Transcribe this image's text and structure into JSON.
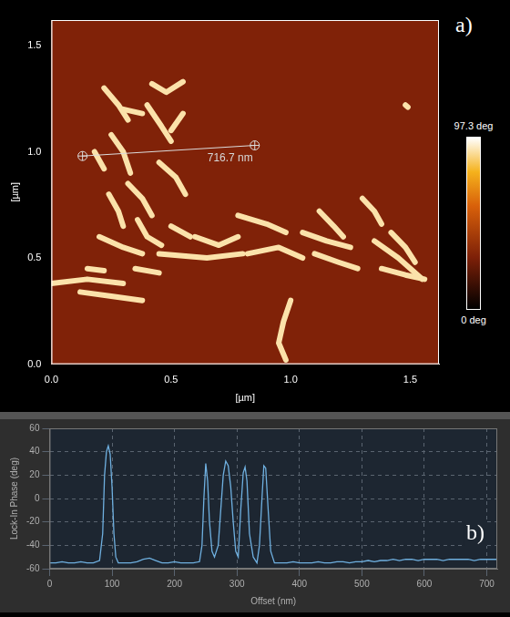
{
  "chart_data": [
    {
      "type": "phase_map",
      "panel": "a)",
      "xlabel": "[µm]",
      "ylabel": "[µm]",
      "xlim": [
        0,
        1.62
      ],
      "ylim": [
        0,
        1.62
      ],
      "xticks": [
        {
          "value": 0,
          "label": "0.0"
        },
        {
          "value": 0.5,
          "label": "0.5"
        },
        {
          "value": 1,
          "label": "1.0"
        },
        {
          "value": 1.5,
          "label": "1.5"
        }
      ],
      "yticks": [
        {
          "value": 0,
          "label": "0.0"
        },
        {
          "value": 0.5,
          "label": "0.5"
        },
        {
          "value": 1,
          "label": "1.0"
        },
        {
          "value": 1.5,
          "label": "1.5"
        }
      ],
      "colorbar": {
        "range": [
          0,
          97.3
        ],
        "ticks": [
          {
            "value": 0,
            "label": "0 deg"
          },
          {
            "value": 97.3,
            "label": "97.3 deg"
          }
        ]
      },
      "background_phase": 30,
      "fibril_phase": 90,
      "fibrils": [
        [
          [
            0.22,
            1.3
          ],
          [
            0.28,
            1.22
          ],
          [
            0.32,
            1.15
          ]
        ],
        [
          [
            0.42,
            1.32
          ],
          [
            0.48,
            1.28
          ],
          [
            0.55,
            1.33
          ]
        ],
        [
          [
            0.4,
            1.22
          ],
          [
            0.46,
            1.12
          ],
          [
            0.5,
            1.05
          ]
        ],
        [
          [
            0.25,
            1.08
          ],
          [
            0.3,
            1.0
          ],
          [
            0.33,
            0.9
          ]
        ],
        [
          [
            0.18,
            1.0
          ],
          [
            0.22,
            0.92
          ]
        ],
        [
          [
            0.32,
            0.85
          ],
          [
            0.38,
            0.78
          ],
          [
            0.42,
            0.7
          ]
        ],
        [
          [
            0.45,
            0.95
          ],
          [
            0.52,
            0.88
          ],
          [
            0.56,
            0.8
          ]
        ],
        [
          [
            0.24,
            0.8
          ],
          [
            0.28,
            0.72
          ],
          [
            0.3,
            0.65
          ]
        ],
        [
          [
            0.36,
            0.68
          ],
          [
            0.4,
            0.6
          ],
          [
            0.46,
            0.56
          ]
        ],
        [
          [
            0.2,
            0.6
          ],
          [
            0.3,
            0.55
          ],
          [
            0.38,
            0.52
          ]
        ],
        [
          [
            0.5,
            0.65
          ],
          [
            0.58,
            0.6
          ]
        ],
        [
          [
            0.0,
            0.38
          ],
          [
            0.15,
            0.4
          ],
          [
            0.3,
            0.38
          ]
        ],
        [
          [
            0.12,
            0.34
          ],
          [
            0.25,
            0.32
          ],
          [
            0.38,
            0.3
          ]
        ],
        [
          [
            0.35,
            0.45
          ],
          [
            0.45,
            0.43
          ]
        ],
        [
          [
            0.45,
            0.52
          ],
          [
            0.65,
            0.5
          ],
          [
            0.8,
            0.52
          ]
        ],
        [
          [
            0.6,
            0.6
          ],
          [
            0.7,
            0.56
          ],
          [
            0.78,
            0.6
          ]
        ],
        [
          [
            0.78,
            0.7
          ],
          [
            0.9,
            0.66
          ],
          [
            0.98,
            0.62
          ]
        ],
        [
          [
            0.82,
            0.52
          ],
          [
            0.95,
            0.55
          ],
          [
            1.05,
            0.5
          ]
        ],
        [
          [
            1.05,
            0.62
          ],
          [
            1.15,
            0.58
          ],
          [
            1.25,
            0.55
          ]
        ],
        [
          [
            1.1,
            0.52
          ],
          [
            1.2,
            0.48
          ],
          [
            1.28,
            0.45
          ]
        ],
        [
          [
            1.12,
            0.72
          ],
          [
            1.18,
            0.65
          ],
          [
            1.22,
            0.6
          ]
        ],
        [
          [
            1.3,
            0.78
          ],
          [
            1.35,
            0.72
          ],
          [
            1.38,
            0.66
          ]
        ],
        [
          [
            1.35,
            0.58
          ],
          [
            1.45,
            0.5
          ],
          [
            1.55,
            0.4
          ]
        ],
        [
          [
            1.38,
            0.45
          ],
          [
            1.48,
            0.42
          ],
          [
            1.56,
            0.4
          ]
        ],
        [
          [
            1.42,
            0.62
          ],
          [
            1.48,
            0.55
          ],
          [
            1.52,
            0.48
          ]
        ],
        [
          [
            1.0,
            0.3
          ],
          [
            0.97,
            0.2
          ],
          [
            0.95,
            0.1
          ],
          [
            0.98,
            0.02
          ]
        ],
        [
          [
            1.48,
            1.22
          ],
          [
            1.49,
            1.21
          ]
        ],
        [
          [
            0.3,
            1.2
          ],
          [
            0.38,
            1.18
          ]
        ],
        [
          [
            0.55,
            1.18
          ],
          [
            0.5,
            1.1
          ]
        ],
        [
          [
            0.15,
            0.45
          ],
          [
            0.22,
            0.44
          ]
        ]
      ],
      "profile_line": {
        "start": [
          0.13,
          0.98
        ],
        "end": [
          0.85,
          1.03
        ],
        "label": "716.7 nm"
      }
    },
    {
      "type": "line",
      "panel": "b)",
      "xlabel": "Offset (nm)",
      "ylabel": "Lock-In Phase (deg)",
      "color": "#6fb0e0",
      "grid": true,
      "xlim": [
        0,
        716.7
      ],
      "ylim": [
        -60,
        60
      ],
      "xticks": [
        0,
        100,
        200,
        300,
        400,
        500,
        600,
        700
      ],
      "yticks": [
        -60,
        -40,
        -20,
        0,
        20,
        40,
        60
      ],
      "x": [
        0,
        10,
        20,
        30,
        40,
        50,
        60,
        70,
        80,
        85,
        88,
        91,
        94,
        97,
        100,
        103,
        106,
        110,
        120,
        130,
        140,
        150,
        160,
        170,
        180,
        190,
        200,
        210,
        220,
        230,
        240,
        244,
        247,
        250,
        253,
        256,
        260,
        264,
        270,
        274,
        278,
        282,
        286,
        290,
        294,
        298,
        302,
        306,
        310,
        313,
        316,
        320,
        326,
        332,
        336,
        340,
        343,
        346,
        350,
        354,
        360,
        370,
        380,
        390,
        400,
        410,
        420,
        430,
        440,
        450,
        460,
        470,
        480,
        490,
        500,
        510,
        520,
        530,
        540,
        550,
        560,
        570,
        580,
        590,
        600,
        610,
        620,
        630,
        640,
        650,
        660,
        670,
        680,
        690,
        700,
        710,
        716.7
      ],
      "values": [
        -55,
        -55,
        -54,
        -55,
        -55,
        -54,
        -55,
        -55,
        -53,
        -30,
        20,
        40,
        45,
        38,
        10,
        -30,
        -50,
        -55,
        -55,
        -55,
        -54,
        -52,
        -51,
        -53,
        -55,
        -55,
        -54,
        -55,
        -55,
        -55,
        -54,
        -40,
        0,
        30,
        15,
        -20,
        -45,
        -50,
        -40,
        -10,
        20,
        32,
        28,
        10,
        -20,
        -45,
        -50,
        -10,
        22,
        27,
        15,
        -30,
        -50,
        -55,
        -40,
        0,
        28,
        26,
        -10,
        -45,
        -55,
        -55,
        -55,
        -54,
        -55,
        -55,
        -55,
        -54,
        -55,
        -55,
        -54,
        -54,
        -55,
        -54,
        -54,
        -53,
        -54,
        -53,
        -53,
        -52,
        -53,
        -52,
        -52,
        -53,
        -52,
        -52,
        -52,
        -53,
        -52,
        -52,
        -52,
        -52,
        -53,
        -52,
        -52,
        -52,
        -52
      ]
    }
  ]
}
